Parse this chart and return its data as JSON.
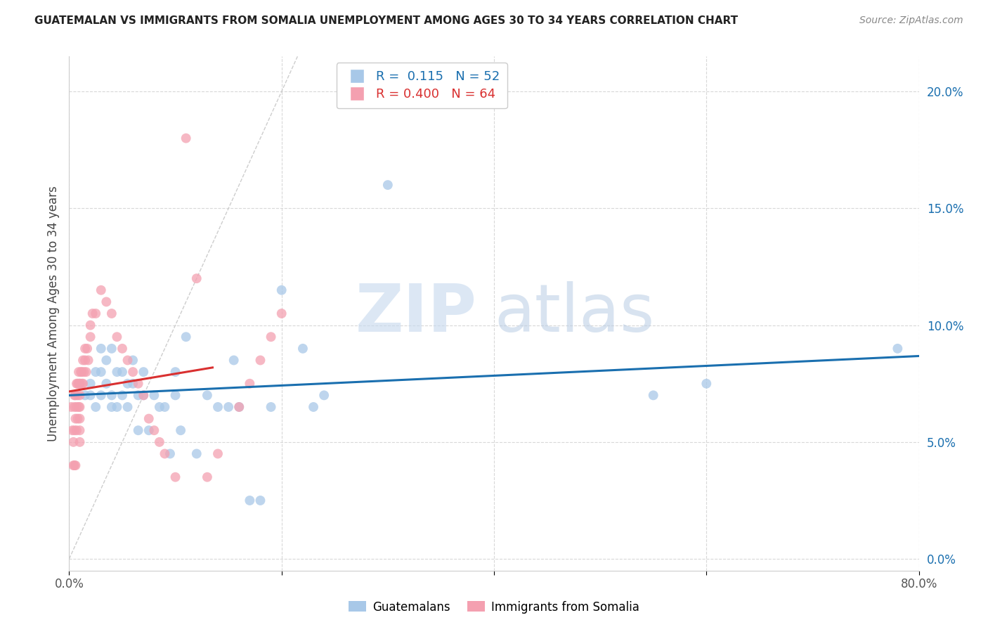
{
  "title": "GUATEMALAN VS IMMIGRANTS FROM SOMALIA UNEMPLOYMENT AMONG AGES 30 TO 34 YEARS CORRELATION CHART",
  "source": "Source: ZipAtlas.com",
  "ylabel": "Unemployment Among Ages 30 to 34 years",
  "ytick_labels": [
    "0.0%",
    "5.0%",
    "10.0%",
    "15.0%",
    "20.0%"
  ],
  "ytick_values": [
    0.0,
    0.05,
    0.1,
    0.15,
    0.2
  ],
  "xlim": [
    0.0,
    0.8
  ],
  "ylim": [
    -0.005,
    0.215
  ],
  "legend_blue_R": "0.115",
  "legend_blue_N": "52",
  "legend_pink_R": "0.400",
  "legend_pink_N": "64",
  "legend_label_blue": "Guatemalans",
  "legend_label_pink": "Immigrants from Somalia",
  "blue_color": "#a8c8e8",
  "pink_color": "#f4a0b0",
  "blue_line_color": "#1a6faf",
  "pink_line_color": "#d93030",
  "diagonal_color": "#c8c8c8",
  "blue_scatter_x": [
    0.01,
    0.015,
    0.02,
    0.02,
    0.025,
    0.025,
    0.03,
    0.03,
    0.03,
    0.035,
    0.035,
    0.04,
    0.04,
    0.04,
    0.045,
    0.045,
    0.05,
    0.05,
    0.055,
    0.055,
    0.06,
    0.06,
    0.065,
    0.065,
    0.07,
    0.07,
    0.075,
    0.08,
    0.085,
    0.09,
    0.095,
    0.1,
    0.1,
    0.105,
    0.11,
    0.12,
    0.13,
    0.14,
    0.15,
    0.155,
    0.16,
    0.17,
    0.18,
    0.19,
    0.2,
    0.22,
    0.23,
    0.24,
    0.3,
    0.55,
    0.6,
    0.78
  ],
  "blue_scatter_y": [
    0.075,
    0.07,
    0.07,
    0.075,
    0.065,
    0.08,
    0.07,
    0.08,
    0.09,
    0.075,
    0.085,
    0.07,
    0.065,
    0.09,
    0.065,
    0.08,
    0.07,
    0.08,
    0.065,
    0.075,
    0.075,
    0.085,
    0.055,
    0.07,
    0.08,
    0.07,
    0.055,
    0.07,
    0.065,
    0.065,
    0.045,
    0.07,
    0.08,
    0.055,
    0.095,
    0.045,
    0.07,
    0.065,
    0.065,
    0.085,
    0.065,
    0.025,
    0.025,
    0.065,
    0.115,
    0.09,
    0.065,
    0.07,
    0.16,
    0.07,
    0.075,
    0.09
  ],
  "pink_scatter_x": [
    0.002,
    0.003,
    0.004,
    0.004,
    0.005,
    0.005,
    0.005,
    0.005,
    0.006,
    0.006,
    0.006,
    0.007,
    0.007,
    0.007,
    0.008,
    0.008,
    0.008,
    0.009,
    0.009,
    0.009,
    0.01,
    0.01,
    0.01,
    0.01,
    0.01,
    0.01,
    0.011,
    0.012,
    0.012,
    0.013,
    0.013,
    0.014,
    0.015,
    0.015,
    0.016,
    0.017,
    0.018,
    0.02,
    0.02,
    0.022,
    0.025,
    0.03,
    0.035,
    0.04,
    0.045,
    0.05,
    0.055,
    0.06,
    0.065,
    0.07,
    0.075,
    0.08,
    0.085,
    0.09,
    0.1,
    0.11,
    0.12,
    0.13,
    0.14,
    0.16,
    0.17,
    0.18,
    0.19,
    0.2
  ],
  "pink_scatter_y": [
    0.065,
    0.055,
    0.05,
    0.04,
    0.07,
    0.065,
    0.055,
    0.04,
    0.07,
    0.06,
    0.04,
    0.075,
    0.065,
    0.055,
    0.075,
    0.07,
    0.06,
    0.08,
    0.075,
    0.065,
    0.075,
    0.07,
    0.065,
    0.06,
    0.055,
    0.05,
    0.08,
    0.08,
    0.075,
    0.085,
    0.075,
    0.08,
    0.09,
    0.085,
    0.08,
    0.09,
    0.085,
    0.1,
    0.095,
    0.105,
    0.105,
    0.115,
    0.11,
    0.105,
    0.095,
    0.09,
    0.085,
    0.08,
    0.075,
    0.07,
    0.06,
    0.055,
    0.05,
    0.045,
    0.035,
    0.18,
    0.12,
    0.035,
    0.045,
    0.065,
    0.075,
    0.085,
    0.095,
    0.105
  ],
  "watermark_zip": "ZIP",
  "watermark_atlas": "atlas",
  "background_color": "#ffffff",
  "grid_color": "#d8d8d8"
}
